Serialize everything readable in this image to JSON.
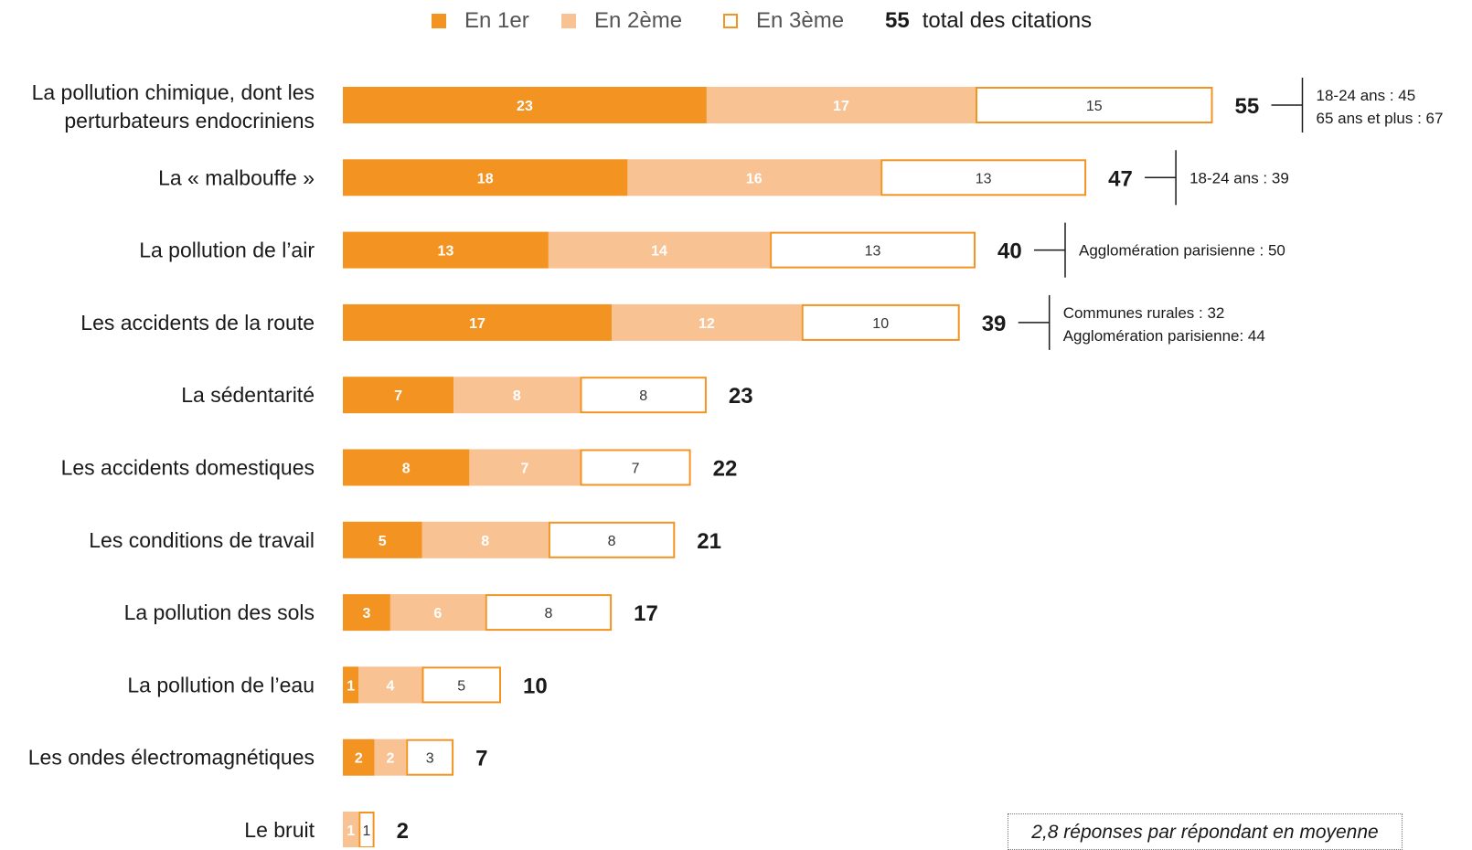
{
  "legend": {
    "first": "En 1er",
    "second": "En 2ème",
    "third": "En 3ème",
    "total_value": "55",
    "total_label": "total des citations"
  },
  "colors": {
    "first": "#F39322",
    "second": "#F9C293",
    "third_border": "#F39322",
    "text_dark": "#1a1a1a"
  },
  "note": "2,8 réponses par répondant en moyenne",
  "chart_data": {
    "type": "bar",
    "orientation": "horizontal",
    "stacked": true,
    "categories": [
      "La pollution chimique, dont les perturbateurs endocriniens",
      "La « malbouffe »",
      "La pollution de l’air",
      "Les accidents de la route",
      "La sédentarité",
      "Les accidents domestiques",
      "Les conditions de travail",
      "La pollution des sols",
      "La pollution de l’eau",
      "Les ondes électromagnétiques",
      "Le bruit"
    ],
    "series": [
      {
        "name": "En 1er",
        "values": [
          23,
          18,
          13,
          17,
          7,
          8,
          5,
          3,
          1,
          2,
          0
        ]
      },
      {
        "name": "En 2ème",
        "values": [
          17,
          16,
          14,
          12,
          8,
          7,
          8,
          6,
          4,
          2,
          1
        ]
      },
      {
        "name": "En 3ème",
        "values": [
          15,
          13,
          13,
          10,
          8,
          7,
          8,
          8,
          5,
          3,
          1
        ]
      }
    ],
    "segment_labels": [
      [
        "23",
        "17",
        "15"
      ],
      [
        "18",
        "16",
        "13"
      ],
      [
        "13",
        "14",
        "13"
      ],
      [
        "17",
        "12",
        "10"
      ],
      [
        "7",
        "8",
        "8"
      ],
      [
        "8",
        "7",
        "7"
      ],
      [
        "5",
        "8",
        "8"
      ],
      [
        "3",
        "6",
        "8"
      ],
      [
        "1",
        "4",
        "5"
      ],
      [
        "2",
        "2",
        "3"
      ],
      [
        "",
        "1",
        "1"
      ]
    ],
    "totals": [
      55,
      47,
      40,
      39,
      23,
      22,
      21,
      17,
      10,
      7,
      2
    ],
    "annotations": [
      {
        "row": 0,
        "lines": [
          "18-24 ans : 45",
          "65 ans et plus : 67"
        ]
      },
      {
        "row": 1,
        "lines": [
          "18-24 ans : 39"
        ]
      },
      {
        "row": 2,
        "lines": [
          "Agglomération parisienne : 50"
        ]
      },
      {
        "row": 3,
        "lines": [
          "Communes rurales : 32",
          "Agglomération parisienne: 44"
        ]
      }
    ],
    "legend_position": "top",
    "grid": false
  }
}
